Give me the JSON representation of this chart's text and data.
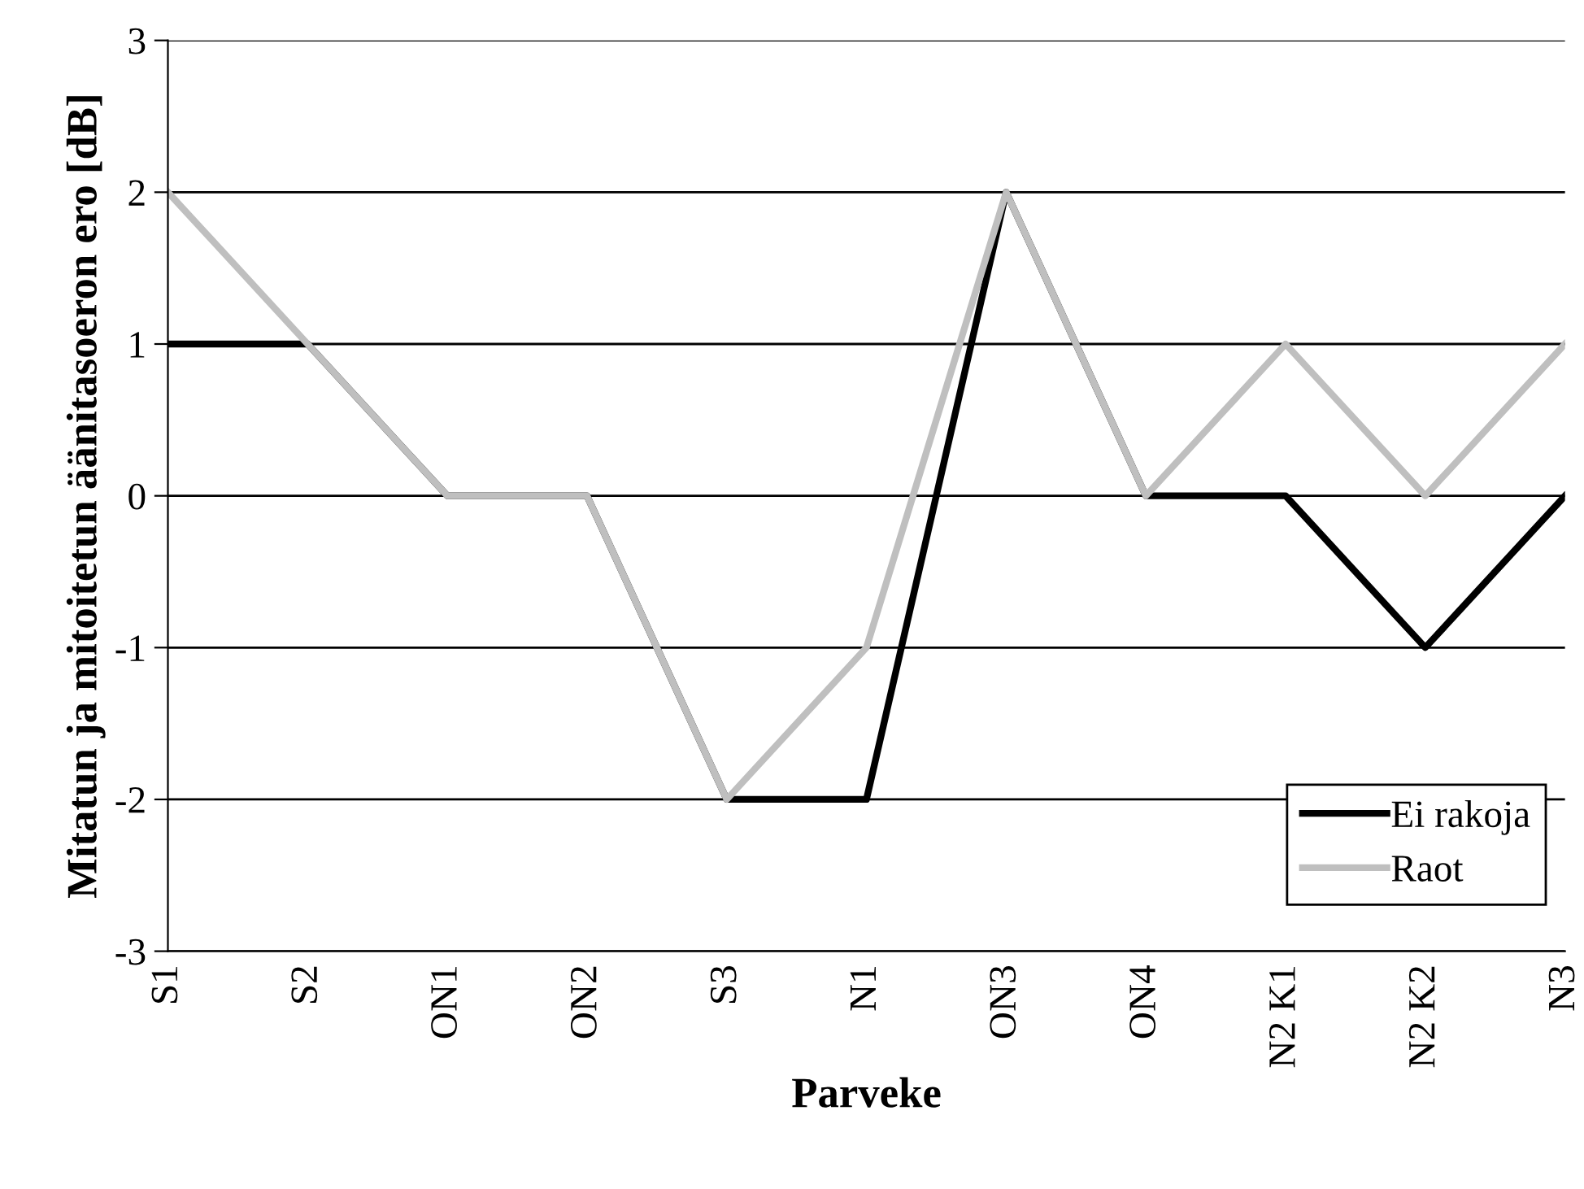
{
  "chart_data": {
    "type": "line",
    "xlabel": "Parveke",
    "ylabel": "Mitatun ja mitoitetun äänitasoeron ero [dB]",
    "categories": [
      "S1",
      "S2",
      "ON1",
      "ON2",
      "S3",
      "N1",
      "ON3",
      "ON4",
      "N2 K1",
      "N2 K2",
      "N3"
    ],
    "series": [
      {
        "name": "Ei rakoja",
        "color": "#000000",
        "values": [
          1,
          1,
          0,
          0,
          -2,
          -2,
          2,
          0,
          0,
          -1,
          0
        ]
      },
      {
        "name": "Raot",
        "color": "#bfbfbf",
        "values": [
          2,
          1,
          0,
          0,
          -2,
          -1,
          2,
          0,
          1,
          0,
          1
        ]
      }
    ],
    "ylim": [
      -3,
      3
    ],
    "yticks": [
      -3,
      -2,
      -1,
      0,
      1,
      2,
      3
    ],
    "grid": "y",
    "legend": "bottom right",
    "marker": "none",
    "line_style": "solid"
  }
}
